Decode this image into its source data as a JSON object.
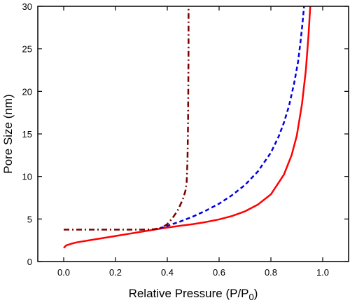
{
  "chart_data": {
    "type": "line",
    "xlabel": "Relative Pressure (P/P",
    "xlabel_subscript": "0",
    "xlabel_suffix": ")",
    "ylabel": "Pore Size (nm)",
    "xlim": [
      -0.1,
      1.1
    ],
    "ylim": [
      0,
      30
    ],
    "x_ticks": [
      0.0,
      0.2,
      0.4,
      0.6,
      0.8,
      1.0
    ],
    "x_tick_labels": [
      "0.0",
      "0.2",
      "0.4",
      "0.6",
      "0.8",
      "1.0"
    ],
    "y_ticks": [
      0,
      5,
      10,
      15,
      20,
      25,
      30
    ],
    "y_tick_labels": [
      "0",
      "5",
      "10",
      "15",
      "20",
      "25",
      "30"
    ],
    "grid": false,
    "legend": false,
    "series": [
      {
        "color": "#ff0000",
        "style": "solid",
        "points": [
          [
            0.0,
            1.6
          ],
          [
            0.01,
            1.9
          ],
          [
            0.03,
            2.1
          ],
          [
            0.05,
            2.25
          ],
          [
            0.1,
            2.5
          ],
          [
            0.15,
            2.75
          ],
          [
            0.2,
            3.0
          ],
          [
            0.25,
            3.25
          ],
          [
            0.3,
            3.5
          ],
          [
            0.35,
            3.75
          ],
          [
            0.4,
            4.0
          ],
          [
            0.45,
            4.2
          ],
          [
            0.5,
            4.4
          ],
          [
            0.55,
            4.65
          ],
          [
            0.6,
            4.95
          ],
          [
            0.65,
            5.35
          ],
          [
            0.7,
            5.9
          ],
          [
            0.75,
            6.7
          ],
          [
            0.8,
            7.9
          ],
          [
            0.85,
            10.2
          ],
          [
            0.88,
            12.5
          ],
          [
            0.9,
            14.8
          ],
          [
            0.92,
            18.5
          ],
          [
            0.935,
            22.5
          ],
          [
            0.945,
            26.5
          ],
          [
            0.952,
            30.0
          ]
        ]
      },
      {
        "color": "#0000dd",
        "style": "dashed",
        "points": [
          [
            0.37,
            3.9
          ],
          [
            0.4,
            4.2
          ],
          [
            0.45,
            4.7
          ],
          [
            0.5,
            5.3
          ],
          [
            0.55,
            6.0
          ],
          [
            0.6,
            6.8
          ],
          [
            0.65,
            7.8
          ],
          [
            0.7,
            9.0
          ],
          [
            0.75,
            10.6
          ],
          [
            0.8,
            12.8
          ],
          [
            0.83,
            14.7
          ],
          [
            0.85,
            16.3
          ],
          [
            0.87,
            18.3
          ],
          [
            0.89,
            21.0
          ],
          [
            0.905,
            23.5
          ],
          [
            0.915,
            26.0
          ],
          [
            0.922,
            28.0
          ],
          [
            0.928,
            30.0
          ]
        ]
      },
      {
        "color": "#7b0000",
        "style": "dash-dot",
        "points": [
          [
            0.0,
            3.75
          ],
          [
            0.05,
            3.75
          ],
          [
            0.1,
            3.75
          ],
          [
            0.15,
            3.75
          ],
          [
            0.2,
            3.75
          ],
          [
            0.25,
            3.75
          ],
          [
            0.3,
            3.75
          ],
          [
            0.35,
            3.8
          ],
          [
            0.38,
            4.0
          ],
          [
            0.4,
            4.4
          ],
          [
            0.42,
            5.1
          ],
          [
            0.44,
            6.0
          ],
          [
            0.46,
            7.3
          ],
          [
            0.47,
            8.3
          ],
          [
            0.475,
            9.4
          ],
          [
            0.478,
            12.0
          ],
          [
            0.48,
            16.0
          ],
          [
            0.481,
            20.0
          ],
          [
            0.482,
            25.0
          ],
          [
            0.482,
            29.7
          ]
        ]
      }
    ]
  }
}
